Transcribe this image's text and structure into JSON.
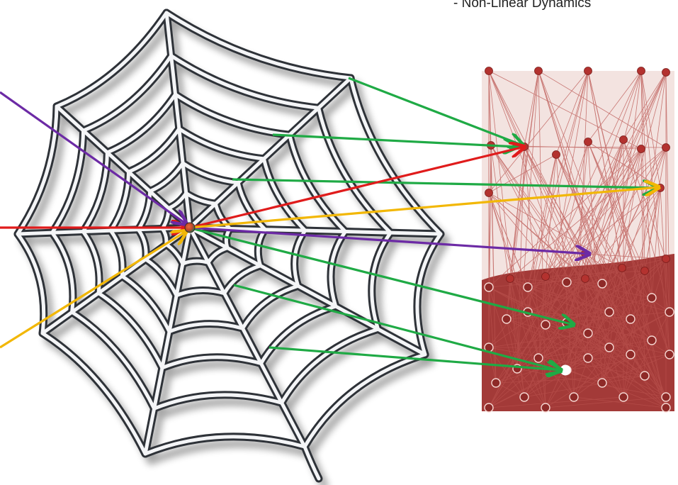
{
  "caption": "- Non-Linear Dynamics",
  "colors": {
    "web_strand": "#2e3238",
    "web_highlight": "#f4f5f7",
    "network_bg": "#f3e3e0",
    "network_dense": "#a33a38",
    "node": "#b3322f",
    "arrow_green": "#1faa45",
    "arrow_red": "#e01b1b",
    "arrow_yellow": "#f2b705",
    "arrow_purple": "#6c2aa5"
  },
  "icons": {
    "web": "spider-web-icon",
    "network": "network-graph-icon",
    "hub": "web-center-node-icon"
  }
}
